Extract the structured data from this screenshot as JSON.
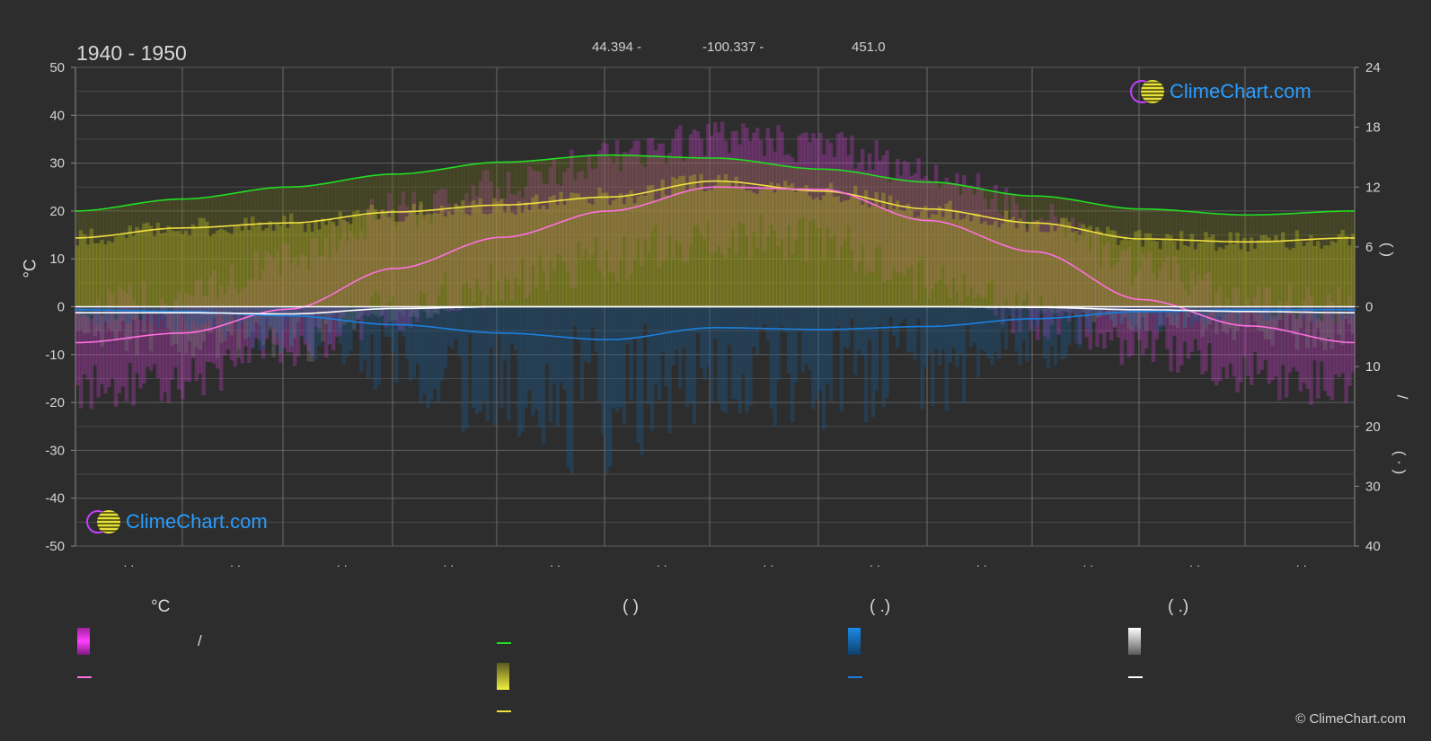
{
  "header": {
    "period": "1940 - 1950",
    "latitude": "44.394 -",
    "longitude": "-100.337 -",
    "elevation": "451.0"
  },
  "brand": {
    "logo_text": "ClimeChart.com",
    "copyright": "© ClimeChart.com"
  },
  "axes": {
    "left_unit": "°C",
    "left_ticks": [
      "50",
      "40",
      "30",
      "20",
      "10",
      "0",
      "-10",
      "-20",
      "-30",
      "-40",
      "-50"
    ],
    "right_upper_ticks": [
      "24",
      "18",
      "12",
      "6",
      "0"
    ],
    "right_lower_ticks": [
      "10",
      "20",
      "30",
      "40"
    ],
    "right_upper_label": "(   )",
    "right_lower_label_a": "/",
    "right_lower_label_b": "( · )",
    "month_ticks": [
      "· ·",
      "· ·",
      "· ·",
      "· ·",
      "· ·",
      "· ·",
      "· ·",
      "· ·",
      "· ·",
      "· ·",
      "· ·",
      "· ·"
    ]
  },
  "legend": {
    "temp_head": "°C",
    "sun_head": "(          )",
    "rain_head": "(   .)",
    "snow_head": "(   .)",
    "temp_range_label": "/"
  },
  "colors": {
    "background": "#2d2d2d",
    "grid": "#5a5a5a",
    "daylight_line": "#22dd22",
    "sunshine_line": "#f0e040",
    "mean_temp_line": "#ff70e0",
    "rain_line": "#1a80e0",
    "snow_line": "#ffffff",
    "temp_band": "#e040e0",
    "sunshine_band": "#b0b020",
    "rain_band": "#1a5a90",
    "snow_band": "#777777"
  },
  "chart_data": {
    "type": "line",
    "x_unit": "month (Jan–Dec)",
    "x": [
      1,
      2,
      3,
      4,
      5,
      6,
      7,
      8,
      9,
      10,
      11,
      12
    ],
    "ylim_left": [
      -50,
      50
    ],
    "ylim_right_hours": [
      0,
      24
    ],
    "ylim_right_precip_mm": [
      0,
      40
    ],
    "grid": true,
    "series": [
      {
        "key": "daylight_hours",
        "axis": "right_hours",
        "values": [
          9.6,
          10.8,
          12.0,
          13.3,
          14.5,
          15.2,
          14.9,
          13.8,
          12.5,
          11.1,
          9.8,
          9.2
        ]
      },
      {
        "key": "sunshine_hours",
        "axis": "right_hours",
        "values": [
          6.9,
          7.9,
          8.4,
          9.5,
          10.2,
          11.0,
          12.6,
          11.6,
          9.8,
          8.4,
          6.8,
          6.5
        ]
      },
      {
        "key": "mean_temp",
        "axis": "left",
        "values": [
          -7.5,
          -5.5,
          -0.5,
          8.0,
          14.5,
          20.0,
          25.0,
          24.5,
          18.0,
          11.5,
          1.5,
          -4.0
        ]
      },
      {
        "key": "rain_mm",
        "axis": "right_precip",
        "values": [
          0.5,
          0.8,
          1.5,
          3.0,
          4.4,
          5.5,
          3.5,
          3.8,
          3.3,
          2.0,
          0.8,
          0.5
        ]
      },
      {
        "key": "snow_mm",
        "axis": "right_precip",
        "values": [
          1.0,
          1.0,
          1.2,
          0.3,
          0.0,
          0.0,
          0.0,
          0.0,
          0.0,
          0.1,
          0.5,
          0.8
        ]
      }
    ],
    "temp_band_max": [
      0,
      2,
      10,
      20,
      25,
      31,
      35,
      34,
      28,
      20,
      8,
      2
    ],
    "temp_band_min": [
      -17,
      -15,
      -8,
      0,
      5,
      10,
      15,
      14,
      6,
      -2,
      -8,
      -14
    ]
  }
}
